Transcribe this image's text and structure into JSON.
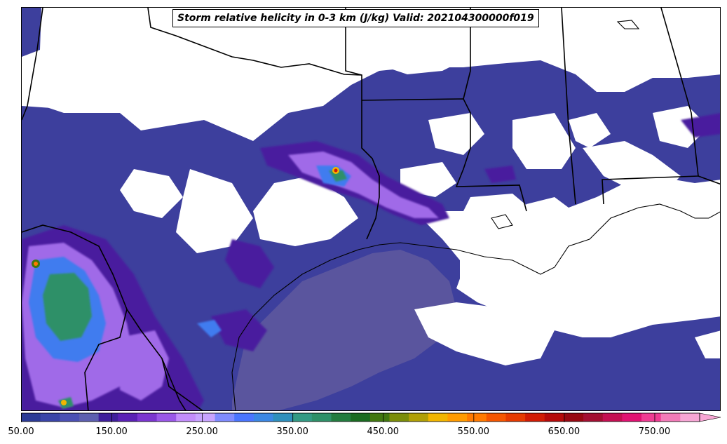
{
  "title": "Storm relative helicity in 0-3 km (J/kg) Valid: 202104300000f019",
  "colorbar": {
    "min": 50,
    "max": 800,
    "step": 25,
    "extend": "max",
    "tick_labels": [
      "50.00",
      "150.00",
      "250.00",
      "350.00",
      "450.00",
      "550.00",
      "650.00",
      "750.00"
    ],
    "colors": [
      "#2b3a96",
      "#3a44a8",
      "#4b50b4",
      "#5d5fb0",
      "#3f1f9c",
      "#5a21b5",
      "#7b35d0",
      "#9a57e8",
      "#c38dfb",
      "#c8a4ff",
      "#7f8bff",
      "#4a75ff",
      "#3b87e4",
      "#2f8fbc",
      "#339a84",
      "#2e9068",
      "#237c3f",
      "#1a6b21",
      "#41770f",
      "#7b8d09",
      "#b09f06",
      "#f1b500",
      "#ff9b00",
      "#ff7a00",
      "#f55600",
      "#e63a00",
      "#d11b04",
      "#b50a0a",
      "#970812",
      "#a30f32",
      "#c40f52",
      "#e01272",
      "#ef3c93",
      "#f27bb8",
      "#f7a6d5"
    ]
  },
  "map_colors": {
    "background": "#ffffff",
    "base_shade": "#3d3f9d",
    "ocean_shade": "#5a559e",
    "border_line": "#000000"
  }
}
